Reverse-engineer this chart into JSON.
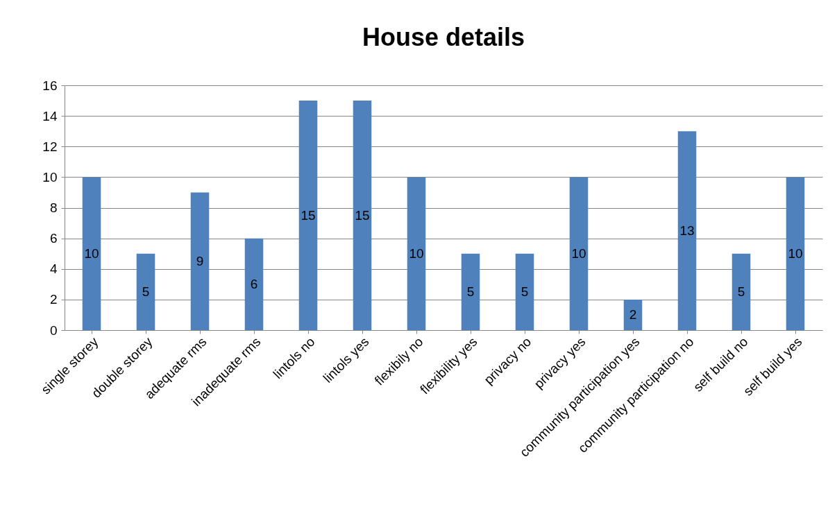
{
  "chart_data": {
    "type": "bar",
    "title": "House details",
    "categories": [
      "single storey",
      "double storey",
      "adequate rms",
      "inadequate rms",
      "lintols no",
      "lintols yes",
      "flexibily no",
      "flexibility yes",
      "privacy no",
      "privacy yes",
      "community participation yes",
      "community participation no",
      "self build no",
      "self build yes"
    ],
    "values": [
      10,
      5,
      9,
      6,
      15,
      15,
      10,
      5,
      5,
      10,
      2,
      13,
      5,
      10
    ],
    "color": "#4f81bd",
    "ylim": [
      0,
      16
    ],
    "yticks": [
      0,
      2,
      4,
      6,
      8,
      10,
      12,
      14,
      16
    ],
    "grid": "y",
    "data_labels": true
  }
}
